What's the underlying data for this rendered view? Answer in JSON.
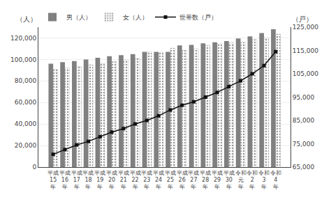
{
  "chart_data": {
    "type": "bar",
    "categories": [
      "平成\n15\n年",
      "平成\n16\n年",
      "平成\n17\n年",
      "平成\n18\n年",
      "平成\n19\n年",
      "平成\n20\n年",
      "平成\n21\n年",
      "平成\n22\n年",
      "平成\n23\n年",
      "平成\n24\n年",
      "平成\n25\n年",
      "平成\n26\n年",
      "平成\n27\n年",
      "平成\n28\n年",
      "平成\n29\n年",
      "平成\n30\n年",
      "令和\n元\n年",
      "令和\n2\n年",
      "令和\n3\n年",
      "令和\n4\n年"
    ],
    "series": [
      {
        "name": "男（人）",
        "color": "#808080",
        "values": [
          96000,
          97500,
          98500,
          100000,
          101500,
          103000,
          104000,
          105000,
          107000,
          107000,
          107000,
          113000,
          113500,
          115000,
          116000,
          117000,
          119500,
          121500,
          124500,
          128000
        ]
      },
      {
        "name": "女（人）",
        "color": "#d0d0d0",
        "values": [
          91000,
          92000,
          93500,
          95000,
          96500,
          98000,
          99500,
          101000,
          107000,
          106500,
          110500,
          108500,
          110000,
          113000,
          114500,
          115500,
          116000,
          118500,
          120000,
          123500
        ]
      },
      {
        "name": "世帯数（戸）",
        "type": "line",
        "axis": "y2",
        "color": "#111111",
        "marker": "square",
        "values": [
          70500,
          72500,
          74500,
          76000,
          78000,
          80000,
          81500,
          83500,
          85000,
          87000,
          89500,
          91500,
          93000,
          95000,
          97000,
          99500,
          102000,
          105000,
          108500,
          114500
        ]
      }
    ],
    "ylabel": "（人）",
    "y2label": "（戸）",
    "ylim": [
      0,
      130000
    ],
    "yticks": [
      0,
      {
        "value": 20000,
        "label": "20,000"
      },
      {
        "value": 40000,
        "label": "40,000"
      },
      {
        "value": 60000,
        "label": "60,000"
      },
      {
        "value": 80000,
        "label": "80,000"
      },
      {
        "value": 100000,
        "label": "100,000"
      },
      {
        "value": 120000,
        "label": "120,000"
      }
    ],
    "y2lim": [
      65000,
      125000
    ],
    "y2ticks": [
      {
        "value": 65000,
        "label": "65,000"
      },
      {
        "value": 75000,
        "label": "75,000"
      },
      {
        "value": 85000,
        "label": "85,000"
      },
      {
        "value": 95000,
        "label": "95,000"
      },
      {
        "value": 105000,
        "label": "105,000"
      },
      {
        "value": 115000,
        "label": "115,000"
      },
      {
        "value": 125000,
        "label": "125,000"
      }
    ],
    "grid": true,
    "legend": "upper left"
  }
}
